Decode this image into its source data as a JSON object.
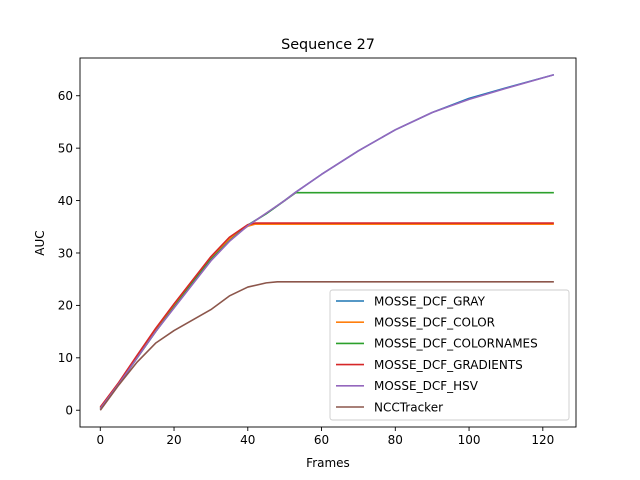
{
  "chart_data": {
    "type": "line",
    "title": "Sequence 27",
    "xlabel": "Frames",
    "ylabel": "AUC",
    "xlim": [
      -5.5,
      129
    ],
    "ylim": [
      -3.2,
      67.2
    ],
    "xticks": [
      0,
      20,
      40,
      60,
      80,
      100,
      120
    ],
    "yticks": [
      0,
      10,
      20,
      30,
      40,
      50,
      60
    ],
    "grid": false,
    "legend_position": "lower-right",
    "series": [
      {
        "name": "MOSSE_DCF_GRAY",
        "color": "#1f77b4",
        "points": [
          [
            0,
            0.3
          ],
          [
            5,
            5
          ],
          [
            10,
            10
          ],
          [
            15,
            15
          ],
          [
            20,
            19.7
          ],
          [
            25,
            24.3
          ],
          [
            30,
            28.8
          ],
          [
            35,
            32.3
          ],
          [
            40,
            35.3
          ],
          [
            45,
            37.5
          ],
          [
            50,
            40
          ],
          [
            53,
            41.6
          ],
          [
            60,
            45
          ],
          [
            70,
            49.5
          ],
          [
            80,
            53.5
          ],
          [
            90,
            56.8
          ],
          [
            100,
            59.5
          ],
          [
            110,
            61.5
          ],
          [
            123,
            64
          ]
        ]
      },
      {
        "name": "MOSSE_DCF_COLOR",
        "color": "#ff7f0e",
        "points": [
          [
            0,
            0.5
          ],
          [
            5,
            5.2
          ],
          [
            10,
            10.2
          ],
          [
            15,
            15.3
          ],
          [
            20,
            20
          ],
          [
            25,
            24.6
          ],
          [
            30,
            29.1
          ],
          [
            35,
            32.7
          ],
          [
            40,
            35.1
          ],
          [
            42,
            35.5
          ],
          [
            123,
            35.5
          ]
        ]
      },
      {
        "name": "MOSSE_DCF_COLORNAMES",
        "color": "#2ca02c",
        "points": [
          [
            0,
            0.3
          ],
          [
            5,
            5
          ],
          [
            10,
            10
          ],
          [
            15,
            15
          ],
          [
            20,
            19.7
          ],
          [
            25,
            24.3
          ],
          [
            30,
            28.8
          ],
          [
            35,
            32.3
          ],
          [
            40,
            35.3
          ],
          [
            45,
            37.5
          ],
          [
            50,
            40
          ],
          [
            53,
            41.5
          ],
          [
            123,
            41.5
          ]
        ]
      },
      {
        "name": "MOSSE_DCF_GRADIENTS",
        "color": "#d62728",
        "points": [
          [
            0,
            0.6
          ],
          [
            5,
            5.3
          ],
          [
            10,
            10.5
          ],
          [
            15,
            15.6
          ],
          [
            20,
            20.3
          ],
          [
            25,
            24.8
          ],
          [
            30,
            29.3
          ],
          [
            35,
            33
          ],
          [
            40,
            35.4
          ],
          [
            42,
            35.7
          ],
          [
            123,
            35.7
          ]
        ]
      },
      {
        "name": "MOSSE_DCF_HSV",
        "color": "#9467bd",
        "points": [
          [
            0,
            0.3
          ],
          [
            5,
            5
          ],
          [
            10,
            10
          ],
          [
            15,
            15
          ],
          [
            20,
            19.5
          ],
          [
            25,
            24
          ],
          [
            30,
            28.5
          ],
          [
            35,
            32.2
          ],
          [
            40,
            35.2
          ],
          [
            45,
            37.6
          ],
          [
            50,
            40
          ],
          [
            53,
            41.6
          ],
          [
            60,
            45
          ],
          [
            70,
            49.5
          ],
          [
            80,
            53.5
          ],
          [
            90,
            56.8
          ],
          [
            100,
            59.3
          ],
          [
            110,
            61.4
          ],
          [
            123,
            64
          ]
        ]
      },
      {
        "name": "NCCTracker",
        "color": "#8c564b",
        "points": [
          [
            0,
            0
          ],
          [
            5,
            4.8
          ],
          [
            10,
            9.2
          ],
          [
            15,
            12.8
          ],
          [
            20,
            15.2
          ],
          [
            25,
            17.2
          ],
          [
            30,
            19.2
          ],
          [
            35,
            21.8
          ],
          [
            40,
            23.5
          ],
          [
            45,
            24.3
          ],
          [
            48,
            24.5
          ],
          [
            123,
            24.5
          ]
        ]
      }
    ]
  }
}
